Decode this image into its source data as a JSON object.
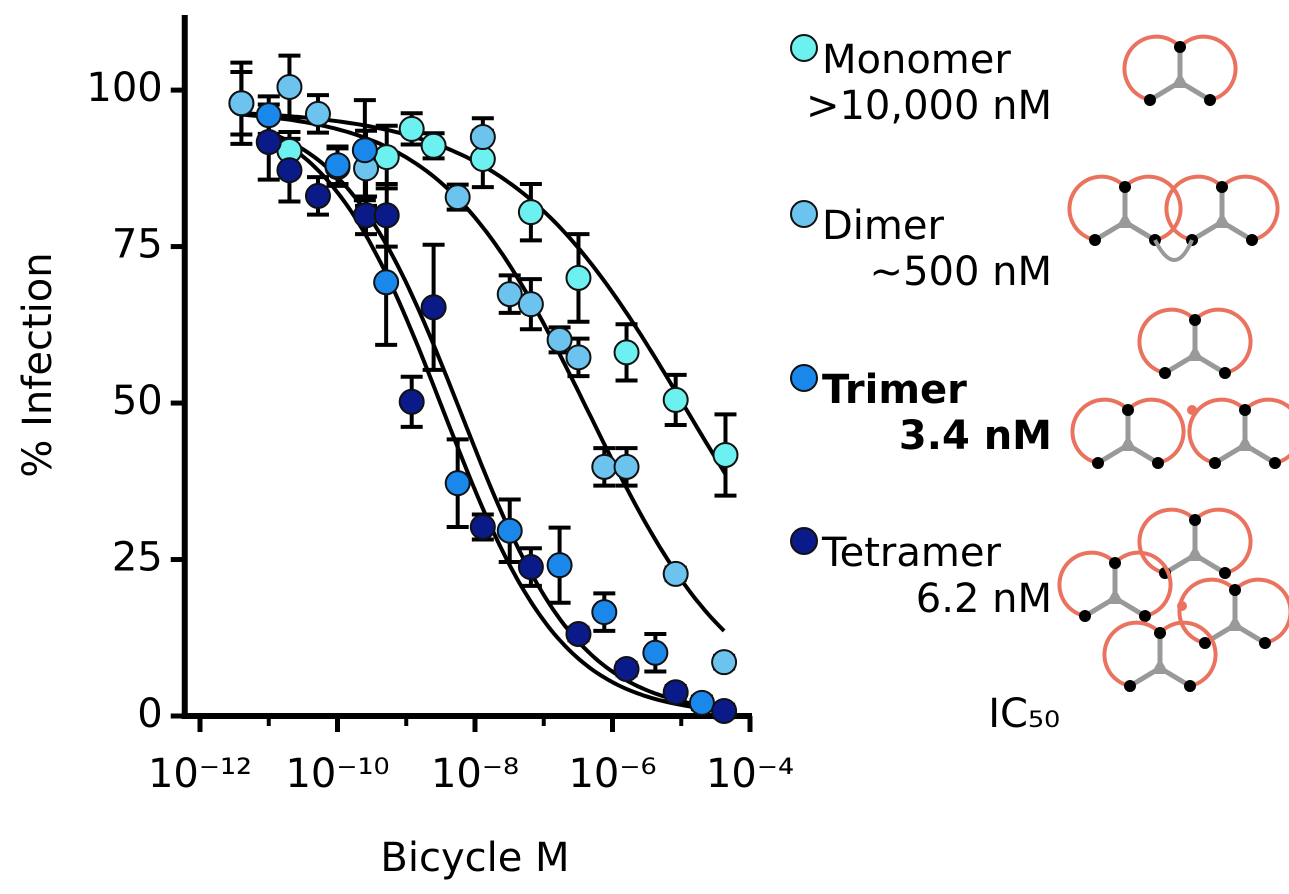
{
  "chart_data": {
    "type": "scatter",
    "xlabel": "Bicycle M",
    "ylabel": "% Infection",
    "xscale": "log",
    "xlim": [
      6e-13,
      0.0001
    ],
    "xticks": [
      {
        "value": 1e-12,
        "label": "10⁻¹²"
      },
      {
        "value": 1e-10,
        "label": "10⁻¹⁰"
      },
      {
        "value": 1e-08,
        "label": "10⁻⁸"
      },
      {
        "value": 1e-06,
        "label": "10⁻⁶"
      },
      {
        "value": 0.0001,
        "label": "10⁻⁴"
      }
    ],
    "xminor_ticks": [
      1e-11,
      1e-09,
      1e-07,
      1e-05
    ],
    "ylim": [
      0,
      112
    ],
    "yticks": [
      0,
      25,
      50,
      75,
      100
    ],
    "legend_note": "IC₅₀",
    "series": [
      {
        "name": "Monomer",
        "ic50_label": ">10,000 nM",
        "color": "#6cf0f0",
        "x": [
          4e-12,
          2e-11,
          1e-10,
          5.2e-10,
          1.2e-09,
          2.5e-09,
          1.3e-08,
          6.5e-08,
          3.2e-07,
          1.6e-06,
          8.3e-06,
          4.4e-05
        ],
        "values": [
          97.9,
          90.3,
          87.7,
          89.3,
          93.8,
          91.1,
          89.0,
          80.5,
          70.0,
          58.1,
          50.5,
          41.7
        ],
        "errors": [
          6.5,
          3,
          3,
          5,
          2.5,
          2,
          4.5,
          4.5,
          7,
          4.5,
          4,
          6.5
        ],
        "fit": {
          "top": 97,
          "bottom": 0,
          "ic50": 1.26e-05,
          "hill": 0.33
        }
      },
      {
        "name": "Dimer",
        "ic50_label": "~500 nM",
        "color": "#6cc4ee",
        "x": [
          4e-12,
          2e-11,
          5.2e-11,
          2.6e-10,
          5.6e-09,
          1.3e-08,
          3.2e-08,
          6.5e-08,
          1.7e-07,
          3.2e-07,
          7.6e-07,
          1.6e-06,
          8.3e-06,
          4.2e-05
        ],
        "values": [
          97.9,
          100.5,
          96.2,
          87.5,
          82.9,
          92.5,
          67.4,
          65.8,
          60.1,
          57.3,
          39.8,
          39.8,
          22.7,
          8.6
        ],
        "errors": [
          5,
          5,
          3,
          6,
          2,
          3,
          3,
          4,
          2,
          3,
          3,
          3,
          1,
          1
        ],
        "fit": {
          "top": 97,
          "bottom": 0,
          "ic50": 4.5e-07,
          "hill": 0.4
        }
      },
      {
        "name": "Trimer",
        "ic50_label": "3.4 nM",
        "bold": true,
        "color": "#1a87ea",
        "x": [
          1e-11,
          1e-10,
          2.5e-10,
          5.1e-10,
          5.6e-09,
          3.2e-08,
          1.7e-07,
          7.6e-07,
          4.2e-06,
          2e-05
        ],
        "values": [
          96.0,
          88.0,
          90.4,
          69.3,
          37.2,
          29.6,
          24.1,
          16.6,
          10.1,
          2.1
        ],
        "errors": [
          3,
          3,
          8,
          10,
          7,
          5,
          6,
          3,
          3,
          1
        ],
        "fit": {
          "top": 98,
          "bottom": 0,
          "ic50": 3.4e-09,
          "hill": 0.5
        }
      },
      {
        "name": "Tetramer",
        "ic50_label": "6.2 nM",
        "color": "#0a1a88",
        "x": [
          1e-11,
          2e-11,
          5.2e-11,
          2.6e-10,
          5.2e-10,
          1.2e-09,
          2.5e-09,
          1.3e-08,
          6.5e-08,
          3.2e-07,
          1.6e-06,
          8.3e-06,
          4.2e-05
        ],
        "values": [
          91.7,
          87.2,
          83.1,
          80.0,
          80.0,
          50.2,
          65.3,
          30.2,
          23.8,
          13.1,
          7.5,
          3.8,
          0.8
        ],
        "errors": [
          6,
          5,
          3,
          3,
          5,
          4,
          10,
          2,
          3,
          1,
          1,
          1,
          1
        ],
        "fit": {
          "top": 97,
          "bottom": 0,
          "ic50": 6.2e-09,
          "hill": 0.5
        }
      }
    ]
  }
}
